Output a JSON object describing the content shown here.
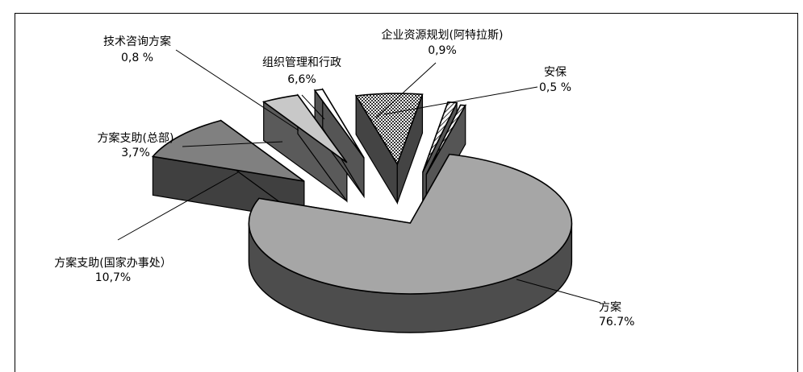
{
  "chart_data": {
    "type": "pie",
    "style": "exploded-3d",
    "legend": "none (callout labels)",
    "slices": [
      {
        "name": "方案",
        "value": 76.7,
        "value_label": "76.7%",
        "fill": "#a6a6a6",
        "side": "#4d4d4d",
        "pattern": "solid"
      },
      {
        "name": "方案支助(国家办事处）",
        "value": 10.7,
        "value_label": "10,7%",
        "fill": "#808080",
        "side": "#404040",
        "pattern": "solid"
      },
      {
        "name": "方案支助(总部)",
        "value": 3.7,
        "value_label": "3,7%",
        "fill": "#c8c8c8",
        "side": "#5a5a5a",
        "pattern": "solid"
      },
      {
        "name": "技术咨询方案",
        "value": 0.8,
        "value_label": "0,8 %",
        "fill": "#ffffff",
        "side": "#555555",
        "pattern": "solid"
      },
      {
        "name": "组织管理和行政",
        "value": 6.6,
        "value_label": "6,6%",
        "fill": "#aaaaaa",
        "side": "#444444",
        "pattern": "checker"
      },
      {
        "name": "企业资源规划(阿特拉斯)",
        "value": 0.9,
        "value_label": "0,9%",
        "fill": "#ffffff",
        "side": "#555555",
        "pattern": "hatch"
      },
      {
        "name": "安保",
        "value": 0.5,
        "value_label": "0,5 %",
        "fill": "#ffffff",
        "side": "#555555",
        "pattern": "hatch"
      }
    ]
  }
}
